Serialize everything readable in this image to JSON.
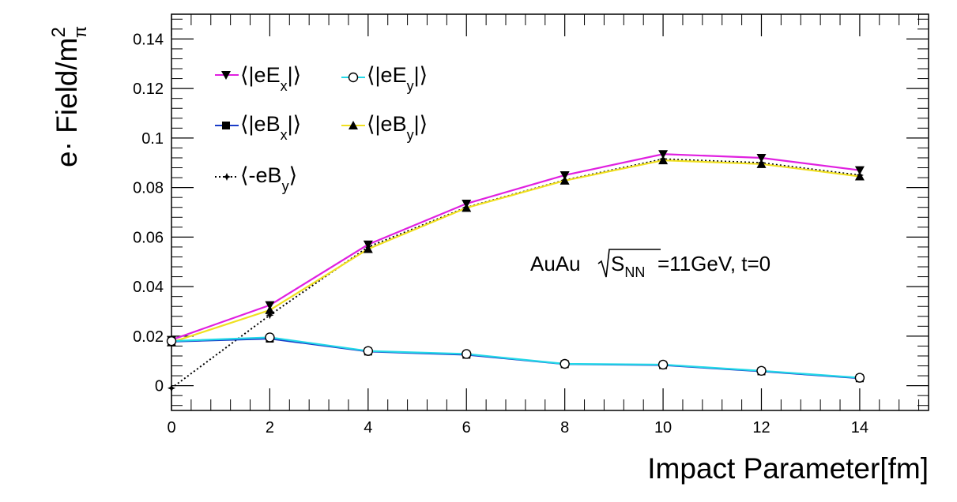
{
  "chart_data": {
    "type": "line",
    "xlabel": "Impact Parameter[fm]",
    "ylabel_parts": {
      "base": "e· Field/m",
      "sup": "2",
      "sub": "π"
    },
    "xlim": [
      0,
      15.4
    ],
    "ylim": [
      -0.01,
      0.15
    ],
    "x_ticks": [
      0,
      2,
      4,
      6,
      8,
      10,
      12,
      14
    ],
    "x_tick_labels": [
      "0",
      "2",
      "4",
      "6",
      "8",
      "10",
      "12",
      "14"
    ],
    "y_ticks": [
      0,
      0.02,
      0.04,
      0.06,
      0.08,
      0.1,
      0.12,
      0.14
    ],
    "y_tick_labels": [
      "0",
      "0.02",
      "0.04",
      "0.06",
      "0.08",
      "0.1",
      "0.12",
      "0.14"
    ],
    "grid": false,
    "legend_placement": "top-left",
    "annotation": {
      "prefix": "AuAu ",
      "radicand": "S",
      "radicand_sub": "NN",
      "suffix": "=11GeV, t=0"
    },
    "x": [
      0,
      2,
      4,
      6,
      8,
      10,
      12,
      14
    ],
    "series": [
      {
        "name_main": "⟨|eE",
        "name_sub": "x",
        "name_end": "|⟩",
        "color": "#e020e0",
        "marker": "triangle-down",
        "line": "solid",
        "values": [
          0.0185,
          0.0325,
          0.057,
          0.0735,
          0.085,
          0.0935,
          0.092,
          0.087
        ]
      },
      {
        "name_main": "⟨|eE",
        "name_sub": "y",
        "name_end": "|⟩",
        "color": "#22d8e8",
        "marker": "circle-open",
        "line": "solid",
        "values": [
          0.018,
          0.0195,
          0.014,
          0.0128,
          0.0088,
          0.0085,
          0.006,
          0.0032
        ]
      },
      {
        "name_main": "⟨|eB",
        "name_sub": "x",
        "name_end": "|⟩",
        "color": "#1a3cc8",
        "marker": "square",
        "line": "solid",
        "values": [
          0.0178,
          0.019,
          0.0138,
          0.0125,
          0.0087,
          0.0083,
          0.0058,
          0.003
        ]
      },
      {
        "name_main": "⟨|eB",
        "name_sub": "y",
        "name_end": "|⟩",
        "color": "#f0e020",
        "marker": "triangle-up",
        "line": "solid",
        "values": [
          0.0175,
          0.0305,
          0.0552,
          0.0718,
          0.0828,
          0.091,
          0.0895,
          0.0845
        ]
      },
      {
        "name_main": "⟨-eB",
        "name_sub": "y",
        "name_end": "⟩",
        "color": "#000000",
        "marker": "star",
        "line": "dotted",
        "values": [
          -0.001,
          0.0285,
          0.056,
          0.072,
          0.083,
          0.0915,
          0.09,
          0.085
        ]
      }
    ]
  }
}
